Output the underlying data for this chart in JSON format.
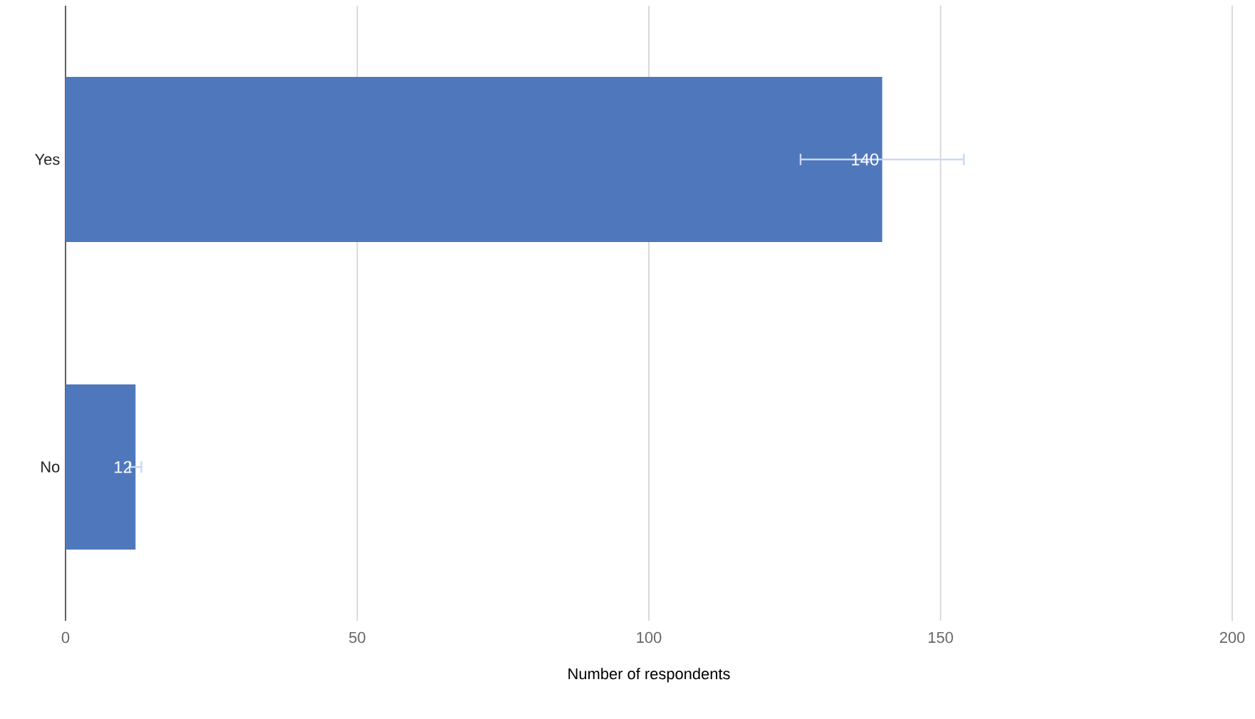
{
  "chart_data": {
    "type": "bar",
    "orientation": "horizontal",
    "xlabel": "Number of respondents",
    "categories": [
      "Yes",
      "No"
    ],
    "values": [
      140,
      12
    ],
    "errors": [
      14,
      1
    ],
    "value_labels": [
      "140",
      "12"
    ],
    "color": "#4f78bc",
    "xlim": [
      0,
      200
    ],
    "xticks": [
      0,
      50,
      100,
      150,
      200
    ],
    "grid": "x"
  }
}
